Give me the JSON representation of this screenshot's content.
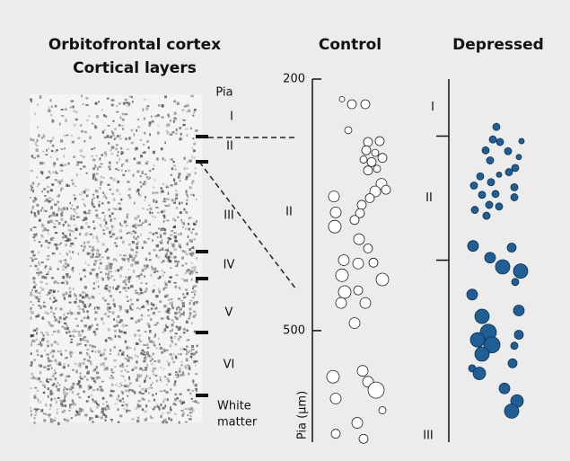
{
  "chart_data": {
    "type": "strip",
    "title_lines": [
      "Orbitofrontal cortex",
      "Cortical layers"
    ],
    "micrograph_labels": [
      "Pia",
      "I",
      "II",
      "III",
      "IV",
      "V",
      "VI",
      "White",
      "matter"
    ],
    "inset_layer_label": "II",
    "y_label": "Pia (µm)",
    "ylim": [
      200,
      633
    ],
    "yticks": [
      200,
      500
    ],
    "layer_labels": [
      "I",
      "II",
      "III"
    ],
    "layer_boundaries": [
      268,
      416
    ],
    "series": [
      {
        "name": "Control",
        "color": "#ffffff",
        "values": [
          224,
          230,
          230,
          261,
          275,
          274,
          285,
          288,
          296,
          299,
          294,
          309,
          307,
          325,
          334,
          332,
          342,
          350,
          340,
          360,
          368,
          359,
          376,
          391,
          402,
          416,
          420,
          434,
          419,
          439,
          452,
          454,
          467,
          467,
          491,
          555,
          548,
          561,
          571,
          581,
          610,
          595,
          623,
          629
        ],
        "sizes": [
          3,
          5,
          5,
          4,
          5,
          5,
          5,
          4,
          4,
          5,
          5,
          5,
          4,
          6,
          6,
          5,
          5,
          5,
          6,
          5,
          5,
          6,
          7,
          6,
          5,
          6,
          6,
          7,
          5,
          7,
          5,
          7,
          6,
          6,
          6,
          7,
          6,
          6,
          9,
          6,
          6,
          4,
          5,
          5
        ]
      },
      {
        "name": "Depressed",
        "color": "#1f5f96",
        "values": [
          257,
          272,
          275,
          274,
          285,
          286,
          293,
          297,
          306,
          311,
          316,
          314,
          323,
          327,
          329,
          338,
          337,
          341,
          350,
          356,
          352,
          363,
          399,
          401,
          413,
          424,
          429,
          442,
          457,
          476,
          483,
          502,
          511,
          517,
          528,
          505,
          518,
          545,
          551,
          539,
          569,
          584,
          596
        ],
        "sizes": [
          4,
          4,
          4,
          3,
          4,
          4,
          3,
          4,
          4,
          4,
          4,
          3,
          4,
          4,
          4,
          4,
          4,
          4,
          4,
          4,
          4,
          4,
          6,
          5,
          6,
          8,
          8,
          4,
          6,
          6,
          8,
          9,
          8,
          9,
          8,
          5,
          4,
          4,
          7,
          5,
          6,
          7,
          8
        ]
      }
    ]
  }
}
